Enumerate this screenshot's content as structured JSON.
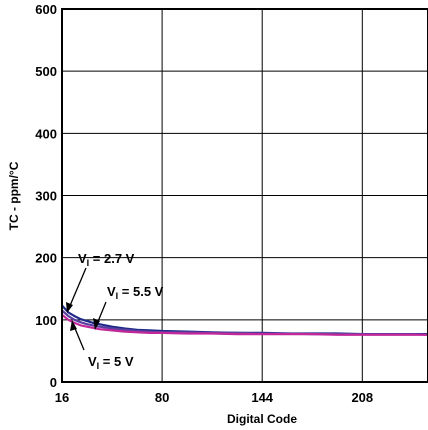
{
  "chart_data": {
    "type": "line",
    "xlabel": "Digital Code",
    "ylabel": "TC - ppm/°C",
    "xlim": [
      16,
      250
    ],
    "ylim": [
      0,
      600
    ],
    "x_ticks": [
      16,
      80,
      144,
      208
    ],
    "y_ticks": [
      0,
      100,
      200,
      300,
      400,
      500,
      600
    ],
    "grid": true,
    "series": [
      {
        "label_main": "V",
        "label_sub": "I",
        "label_rest": " = 2.7 V",
        "color": "#1f2a8a",
        "x": [
          16,
          20,
          24,
          28,
          32,
          36,
          40,
          48,
          56,
          64,
          72,
          80,
          96,
          112,
          128,
          144,
          160,
          176,
          192,
          208,
          224,
          240,
          250
        ],
        "y": [
          123,
          112,
          106,
          101,
          98,
          95,
          93,
          89,
          86,
          84,
          83,
          82,
          81,
          80,
          79,
          79,
          78,
          78,
          78,
          77,
          77,
          77,
          77
        ]
      },
      {
        "label_main": "V",
        "label_sub": "I",
        "label_rest": " = 5.5 V",
        "color": "#5a3f9e",
        "x": [
          16,
          20,
          24,
          28,
          32,
          36,
          40,
          48,
          56,
          64,
          72,
          80,
          96,
          112,
          128,
          144,
          160,
          176,
          192,
          208,
          224,
          240,
          250
        ],
        "y": [
          115,
          106,
          100,
          96,
          93,
          91,
          89,
          86,
          84,
          82,
          81,
          80,
          80,
          79,
          79,
          78,
          78,
          77,
          77,
          77,
          77,
          77,
          76
        ]
      },
      {
        "label_main": "V",
        "label_sub": "I",
        "label_rest": " = 5 V",
        "color": "#c2289a",
        "x": [
          16,
          20,
          24,
          28,
          32,
          36,
          40,
          48,
          56,
          64,
          72,
          80,
          96,
          112,
          128,
          144,
          160,
          176,
          192,
          208,
          224,
          240,
          250
        ],
        "y": [
          108,
          100,
          95,
          91,
          89,
          87,
          85,
          83,
          81,
          80,
          79,
          79,
          78,
          78,
          77,
          77,
          77,
          77,
          76,
          76,
          76,
          76,
          76
        ]
      }
    ]
  }
}
